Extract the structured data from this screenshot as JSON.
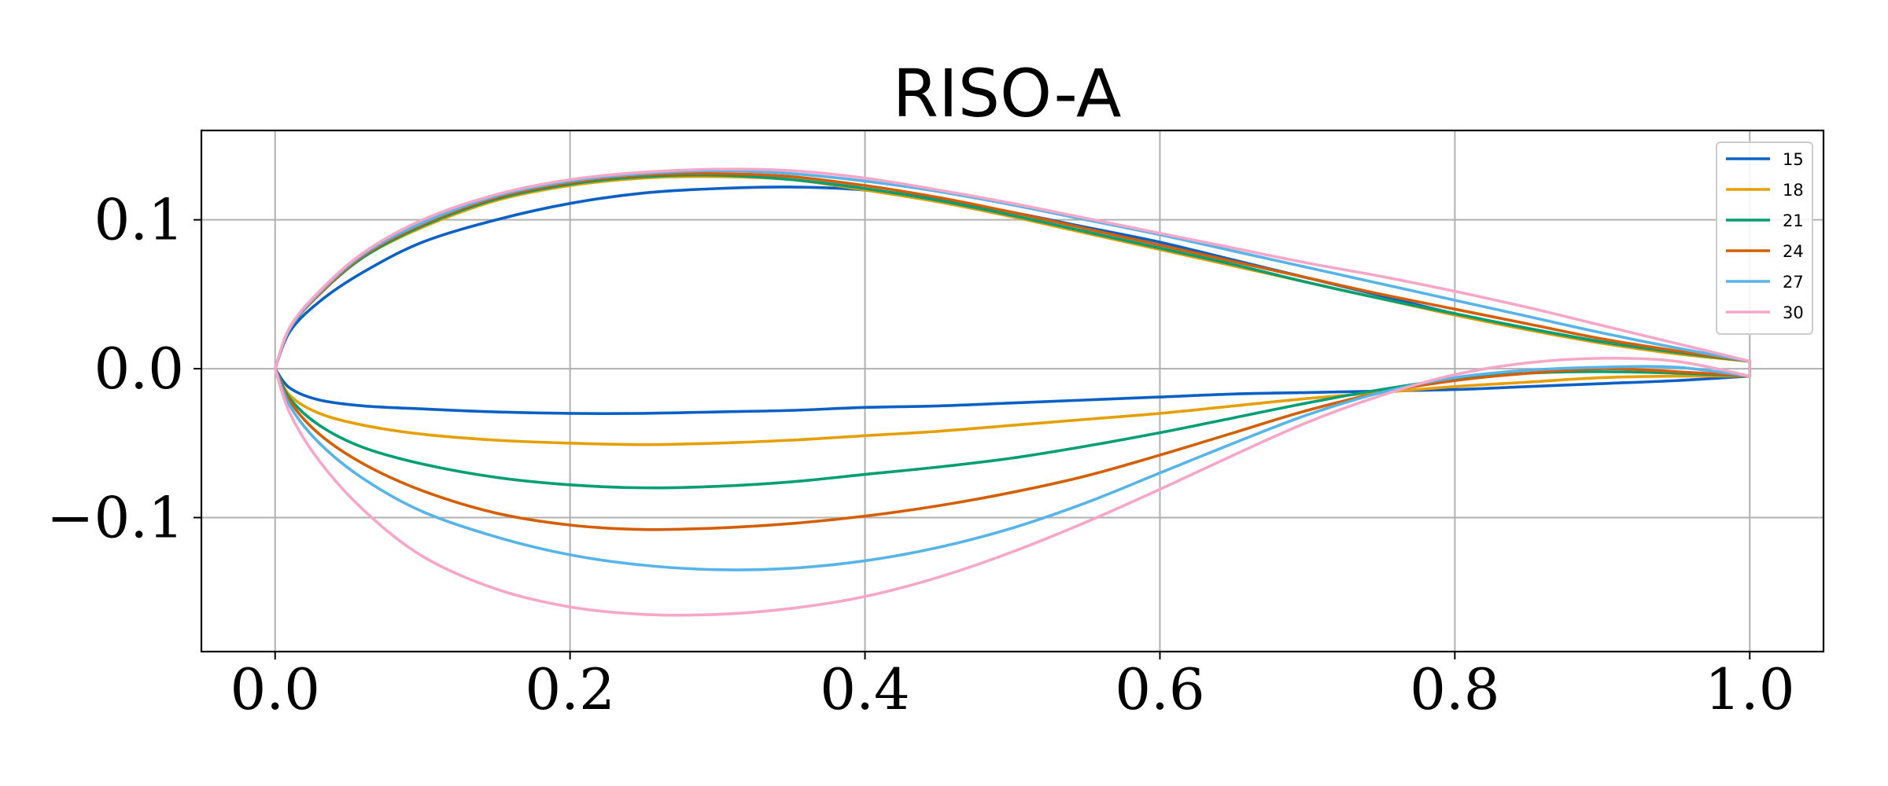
{
  "chart_data": {
    "type": "line",
    "title": "RISO-A",
    "xlabel": "",
    "ylabel": "",
    "xlim": [
      -0.05,
      1.05
    ],
    "ylim": [
      -0.19,
      0.16
    ],
    "grid": true,
    "legend_position": "top-right",
    "x_ticks": [
      0.0,
      0.2,
      0.4,
      0.6,
      0.8,
      1.0
    ],
    "x_tick_labels": [
      "0.0",
      "0.2",
      "0.4",
      "0.6",
      "0.8",
      "1.0"
    ],
    "y_ticks": [
      0.1,
      0.0,
      -0.1
    ],
    "y_tick_labels": [
      "0.1",
      "0.0",
      "−0.1"
    ],
    "x": [
      0.0,
      0.01,
      0.03,
      0.06,
      0.1,
      0.15,
      0.2,
      0.25,
      0.3,
      0.35,
      0.4,
      0.45,
      0.5,
      0.55,
      0.6,
      0.65,
      0.7,
      0.75,
      0.8,
      0.85,
      0.9,
      0.95,
      1.0
    ],
    "series": [
      {
        "name": "15",
        "color": "#0a60c4",
        "upper": [
          0.0,
          0.025,
          0.045,
          0.065,
          0.085,
          0.1,
          0.111,
          0.118,
          0.121,
          0.122,
          0.12,
          0.114,
          0.105,
          0.095,
          0.085,
          0.073,
          0.061,
          0.049,
          0.037,
          0.027,
          0.018,
          0.011,
          0.005
        ],
        "lower": [
          0.0,
          -0.013,
          -0.021,
          -0.025,
          -0.027,
          -0.029,
          -0.03,
          -0.03,
          -0.029,
          -0.028,
          -0.026,
          -0.025,
          -0.023,
          -0.021,
          -0.019,
          -0.017,
          -0.016,
          -0.015,
          -0.014,
          -0.012,
          -0.01,
          -0.008,
          -0.005
        ]
      },
      {
        "name": "18",
        "color": "#e69f00",
        "upper": [
          0.0,
          0.027,
          0.05,
          0.075,
          0.095,
          0.113,
          0.123,
          0.128,
          0.129,
          0.127,
          0.12,
          0.112,
          0.102,
          0.091,
          0.08,
          0.069,
          0.058,
          0.047,
          0.036,
          0.026,
          0.017,
          0.01,
          0.005
        ],
        "lower": [
          0.0,
          -0.018,
          -0.03,
          -0.038,
          -0.044,
          -0.048,
          -0.05,
          -0.051,
          -0.05,
          -0.048,
          -0.045,
          -0.042,
          -0.038,
          -0.034,
          -0.03,
          -0.025,
          -0.02,
          -0.016,
          -0.012,
          -0.009,
          -0.006,
          -0.005,
          -0.005
        ]
      },
      {
        "name": "21",
        "color": "#009e73",
        "upper": [
          0.0,
          0.027,
          0.05,
          0.075,
          0.096,
          0.114,
          0.124,
          0.129,
          0.13,
          0.127,
          0.121,
          0.113,
          0.103,
          0.092,
          0.081,
          0.07,
          0.058,
          0.047,
          0.037,
          0.027,
          0.018,
          0.011,
          0.005
        ],
        "lower": [
          0.0,
          -0.02,
          -0.038,
          -0.053,
          -0.064,
          -0.073,
          -0.078,
          -0.08,
          -0.079,
          -0.076,
          -0.071,
          -0.066,
          -0.06,
          -0.052,
          -0.043,
          -0.033,
          -0.023,
          -0.014,
          -0.007,
          -0.003,
          -0.002,
          -0.003,
          -0.005
        ]
      },
      {
        "name": "24",
        "color": "#d55e00",
        "upper": [
          0.0,
          0.027,
          0.05,
          0.076,
          0.097,
          0.115,
          0.125,
          0.13,
          0.131,
          0.129,
          0.123,
          0.115,
          0.105,
          0.094,
          0.083,
          0.072,
          0.061,
          0.05,
          0.04,
          0.03,
          0.02,
          0.012,
          0.005
        ],
        "lower": [
          0.0,
          -0.022,
          -0.044,
          -0.064,
          -0.082,
          -0.097,
          -0.105,
          -0.108,
          -0.107,
          -0.104,
          -0.099,
          -0.092,
          -0.083,
          -0.072,
          -0.058,
          -0.043,
          -0.028,
          -0.016,
          -0.008,
          -0.003,
          0.0,
          -0.002,
          -0.005
        ]
      },
      {
        "name": "27",
        "color": "#56b4e9",
        "upper": [
          0.0,
          0.027,
          0.051,
          0.077,
          0.098,
          0.116,
          0.126,
          0.131,
          0.133,
          0.131,
          0.126,
          0.119,
          0.11,
          0.1,
          0.09,
          0.079,
          0.068,
          0.057,
          0.046,
          0.035,
          0.024,
          0.014,
          0.005
        ],
        "lower": [
          0.0,
          -0.025,
          -0.05,
          -0.074,
          -0.096,
          -0.113,
          -0.125,
          -0.132,
          -0.135,
          -0.134,
          -0.129,
          -0.12,
          -0.107,
          -0.09,
          -0.07,
          -0.05,
          -0.031,
          -0.016,
          -0.006,
          -0.001,
          0.001,
          0.001,
          -0.005
        ]
      },
      {
        "name": "30",
        "color": "#f7a6c8",
        "upper": [
          0.0,
          0.028,
          0.052,
          0.078,
          0.1,
          0.117,
          0.127,
          0.132,
          0.134,
          0.133,
          0.128,
          0.12,
          0.111,
          0.101,
          0.091,
          0.081,
          0.071,
          0.062,
          0.052,
          0.041,
          0.029,
          0.017,
          0.005
        ],
        "lower": [
          0.0,
          -0.03,
          -0.062,
          -0.095,
          -0.126,
          -0.148,
          -0.16,
          -0.165,
          -0.165,
          -0.161,
          -0.153,
          -0.14,
          -0.123,
          -0.103,
          -0.081,
          -0.058,
          -0.036,
          -0.018,
          -0.004,
          0.004,
          0.007,
          0.005,
          -0.005
        ]
      }
    ]
  }
}
